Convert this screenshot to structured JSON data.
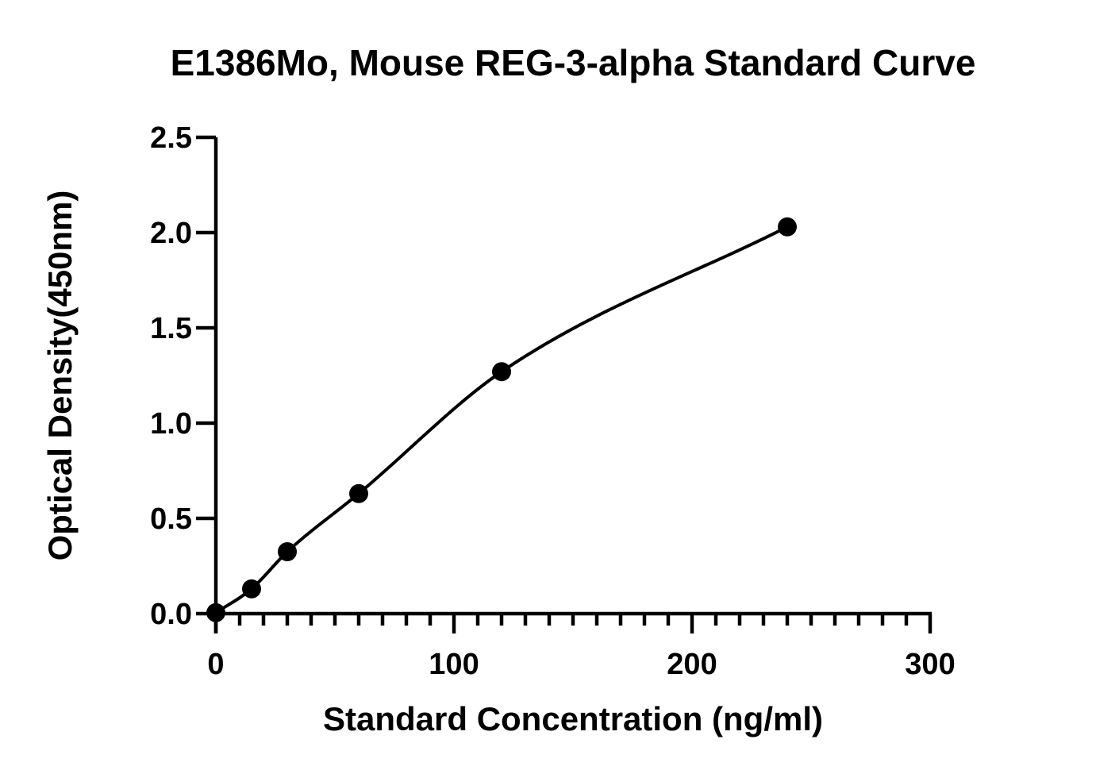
{
  "chart_data": {
    "type": "scatter",
    "title": "E1386Mo, Mouse REG-3-alpha Standard Curve",
    "xlabel": "Standard Concentration (ng/ml)",
    "ylabel": "Optical Density(450nm)",
    "xlim": [
      0,
      300
    ],
    "ylim": [
      0,
      2.5
    ],
    "x_ticks": [
      "0",
      "100",
      "200",
      "300"
    ],
    "y_ticks": [
      "0.0",
      "0.5",
      "1.0",
      "1.5",
      "2.0",
      "2.5"
    ],
    "x_minor_step": 10,
    "grid": false,
    "legend": "none",
    "fit_curve": true,
    "series": [
      {
        "x": [
          0,
          15,
          30,
          60,
          120,
          240
        ],
        "y": [
          0.005,
          0.13,
          0.325,
          0.63,
          1.27,
          2.03
        ]
      }
    ],
    "colors": {
      "points": "#000000",
      "curve": "#000000",
      "axes": "#000000"
    }
  }
}
